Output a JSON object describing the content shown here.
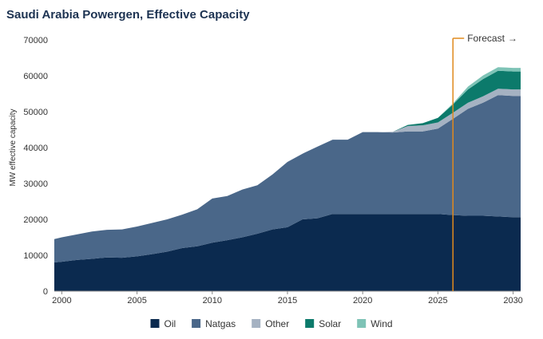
{
  "chart_data": {
    "type": "area",
    "stacked": true,
    "title": "Saudi Arabia Powergen, Effective Capacity",
    "ylabel": "MW effective capacity",
    "xlabel": "",
    "xlim": [
      1999.5,
      2030.5
    ],
    "ylim": [
      0,
      70000
    ],
    "y_ticks": [
      0,
      10000,
      20000,
      30000,
      40000,
      50000,
      60000,
      70000
    ],
    "y_tick_labels": [
      "0",
      "10000",
      "20000",
      "30000",
      "40000",
      "50000",
      "60000",
      "70000"
    ],
    "x_ticks": [
      2000,
      2005,
      2010,
      2015,
      2020,
      2025,
      2030
    ],
    "x_tick_labels": [
      "2000",
      "2005",
      "2010",
      "2015",
      "2020",
      "2025",
      "2030"
    ],
    "x": [
      1999.5,
      2000,
      2001,
      2002,
      2003,
      2004,
      2005,
      2006,
      2007,
      2008,
      2009,
      2010,
      2011,
      2012,
      2013,
      2014,
      2015,
      2016,
      2017,
      2018,
      2019,
      2020,
      2021,
      2022,
      2023,
      2024,
      2025,
      2026,
      2027,
      2028,
      2029,
      2030,
      2030.5
    ],
    "series": [
      {
        "name": "Oil",
        "color": "#0b2a4f",
        "values": [
          8000,
          8200,
          8700,
          9000,
          9400,
          9300,
          9700,
          10300,
          11000,
          12000,
          12500,
          13500,
          14200,
          15000,
          16000,
          17200,
          17800,
          20000,
          20300,
          21500,
          21500,
          21500,
          21500,
          21500,
          21500,
          21500,
          21500,
          21200,
          21000,
          21000,
          20800,
          20600,
          20600
        ]
      },
      {
        "name": "Natgas",
        "color": "#4a6789",
        "values": [
          6500,
          6800,
          7100,
          7600,
          7700,
          7900,
          8300,
          8700,
          9000,
          9300,
          10300,
          12300,
          12300,
          13300,
          13500,
          15300,
          18200,
          18300,
          20000,
          20700,
          20700,
          22800,
          22800,
          22700,
          23000,
          23000,
          23800,
          26800,
          29800,
          31500,
          33800,
          33800,
          33800
        ]
      },
      {
        "name": "Other",
        "color": "#a5b2c2",
        "values": [
          0,
          0,
          0,
          0,
          0,
          0,
          0,
          0,
          0,
          0,
          0,
          0,
          0,
          0,
          0,
          0,
          0,
          0,
          0,
          0,
          0,
          0,
          0,
          200,
          1500,
          1700,
          1700,
          1700,
          1700,
          1800,
          1800,
          1800,
          1800
        ]
      },
      {
        "name": "Solar",
        "color": "#0c7a6b",
        "values": [
          0,
          0,
          0,
          0,
          0,
          0,
          0,
          0,
          0,
          0,
          0,
          0,
          0,
          0,
          0,
          0,
          0,
          0,
          0,
          0,
          0,
          0,
          0,
          0,
          300,
          600,
          1300,
          2300,
          3700,
          4800,
          5000,
          5000,
          5000
        ]
      },
      {
        "name": "Wind",
        "color": "#7ec3b6",
        "values": [
          0,
          0,
          0,
          0,
          0,
          0,
          0,
          0,
          0,
          0,
          0,
          0,
          0,
          0,
          0,
          0,
          0,
          0,
          0,
          0,
          0,
          0,
          0,
          0,
          0,
          0,
          0,
          300,
          800,
          1000,
          1000,
          1000,
          1000
        ]
      }
    ],
    "forecast": {
      "label": "Forecast",
      "start_year": 2026,
      "arrow": "→",
      "color": "#e08a1e"
    },
    "legend_position": "bottom-center",
    "grid": false
  }
}
